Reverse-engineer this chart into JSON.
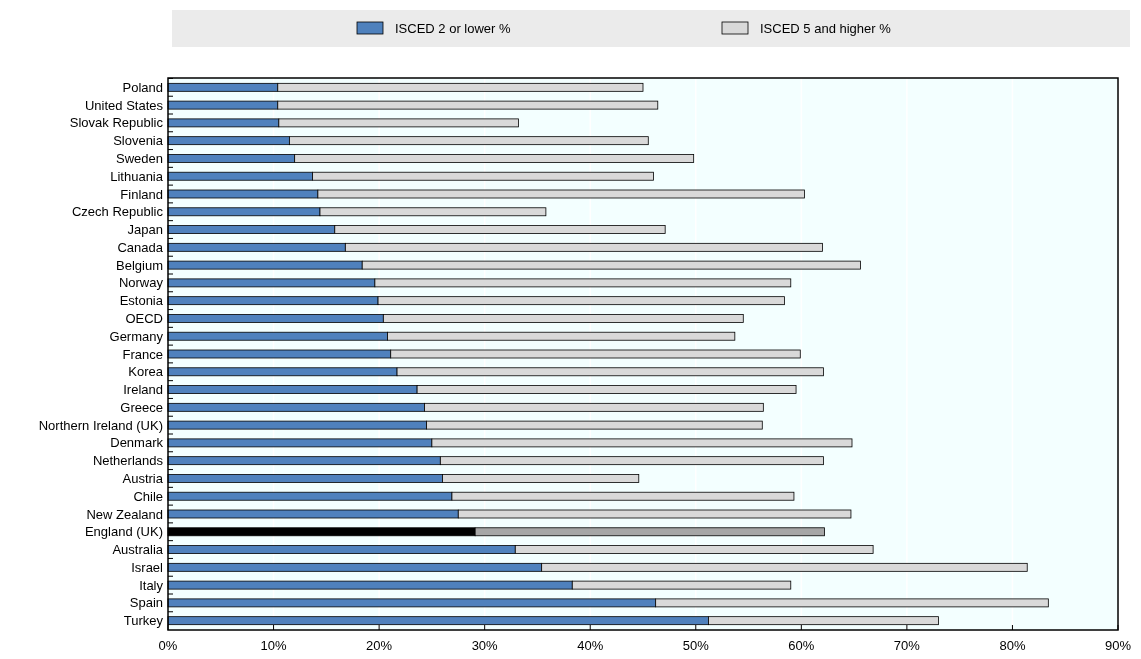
{
  "chart_data": {
    "type": "bar",
    "orientation": "horizontal",
    "stacked": true,
    "legend": "top",
    "grid": "x",
    "categories": [
      "Poland",
      "United States",
      "Slovak Republic",
      "Slovenia",
      "Sweden",
      "Lithuania",
      "Finland",
      "Czech Republic",
      "Japan",
      "Canada",
      "Belgium",
      "Norway",
      "Estonia",
      "OECD",
      "Germany",
      "France",
      "Korea",
      "Ireland",
      "Greece",
      "Northern Ireland (UK)",
      "Denmark",
      "Netherlands",
      "Austria",
      "Chile",
      "New Zealand",
      "England (UK)",
      "Australia",
      "Israel",
      "Italy",
      "Spain",
      "Turkey"
    ],
    "series": [
      {
        "name": "ISCED 2 or lower %",
        "color": "#4f81bd",
        "colors": [
          "#4f81bd",
          "#4f81bd",
          "#4f81bd",
          "#4f81bd",
          "#4f81bd",
          "#4f81bd",
          "#4f81bd",
          "#4f81bd",
          "#4f81bd",
          "#4f81bd",
          "#4f81bd",
          "#4f81bd",
          "#4f81bd",
          "#4f81bd",
          "#4f81bd",
          "#4f81bd",
          "#4f81bd",
          "#4f81bd",
          "#4f81bd",
          "#4f81bd",
          "#4f81bd",
          "#4f81bd",
          "#4f81bd",
          "#4f81bd",
          "#4f81bd",
          "#000000",
          "#4f81bd",
          "#4f81bd",
          "#4f81bd",
          "#4f81bd",
          "#4f81bd"
        ],
        "values": [
          10.4,
          10.4,
          10.5,
          11.5,
          12.0,
          13.7,
          14.2,
          14.4,
          15.8,
          16.8,
          18.4,
          19.6,
          19.9,
          20.4,
          20.8,
          21.1,
          21.7,
          23.6,
          24.3,
          24.5,
          25.0,
          25.8,
          26.0,
          26.9,
          27.5,
          29.1,
          32.9,
          35.4,
          38.3,
          46.2,
          51.2
        ]
      },
      {
        "name": "ISCED 5 and higher %",
        "color": "#d9d9d9",
        "colors": [
          "#d9d9d9",
          "#d9d9d9",
          "#d9d9d9",
          "#d9d9d9",
          "#d9d9d9",
          "#d9d9d9",
          "#d9d9d9",
          "#d9d9d9",
          "#d9d9d9",
          "#d9d9d9",
          "#d9d9d9",
          "#d9d9d9",
          "#d9d9d9",
          "#d9d9d9",
          "#d9d9d9",
          "#d9d9d9",
          "#d9d9d9",
          "#d9d9d9",
          "#d9d9d9",
          "#d9d9d9",
          "#d9d9d9",
          "#d9d9d9",
          "#d9d9d9",
          "#d9d9d9",
          "#d9d9d9",
          "#a6a6a6",
          "#d9d9d9",
          "#d9d9d9",
          "#d9d9d9",
          "#d9d9d9",
          "#d9d9d9"
        ],
        "values": [
          34.6,
          36.0,
          22.7,
          34.0,
          37.8,
          32.3,
          46.1,
          21.4,
          31.3,
          45.2,
          47.2,
          39.4,
          38.5,
          34.1,
          32.9,
          38.8,
          40.4,
          35.9,
          32.1,
          31.8,
          39.8,
          36.3,
          18.6,
          32.4,
          37.2,
          33.1,
          33.9,
          46.0,
          20.7,
          37.2,
          21.8
        ]
      }
    ],
    "xlim": [
      0,
      90
    ],
    "xticks": [
      {
        "value": 0,
        "label": "0%"
      },
      {
        "value": 10,
        "label": "10%"
      },
      {
        "value": 20,
        "label": "20%"
      },
      {
        "value": 30,
        "label": "30%"
      },
      {
        "value": 40,
        "label": "40%"
      },
      {
        "value": 50,
        "label": "50%"
      },
      {
        "value": 60,
        "label": "60%"
      },
      {
        "value": 70,
        "label": "70%"
      },
      {
        "value": 80,
        "label": "80%"
      },
      {
        "value": 90,
        "label": "90%"
      }
    ]
  }
}
